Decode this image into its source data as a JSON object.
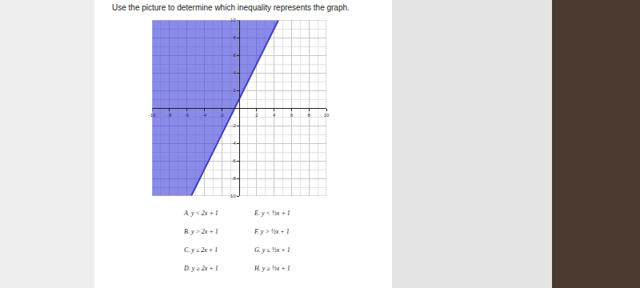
{
  "chart_data": {
    "type": "line",
    "title": "Use the picture to determine which inequality represents the graph.",
    "x": [
      -5.5,
      4.5
    ],
    "values": [
      -10,
      10
    ],
    "color": "#3c3cd8",
    "line_style": "solid",
    "xlim": [
      -10,
      10
    ],
    "ylim": [
      -10,
      10
    ],
    "xticks": [
      -10,
      -8,
      -6,
      -4,
      -2,
      2,
      4,
      6,
      8,
      10
    ],
    "yticks": [
      -10,
      -8,
      -6,
      -4,
      -2,
      2,
      4,
      6,
      8,
      10
    ],
    "grid": true,
    "choices": [
      "A. y < 2x + 1",
      "B. y > 2x + 1",
      "C. y ≤ 2x + 1",
      "D. y ≥ 2x + 1",
      "E. y < ½x + 1",
      "F. y > ½x + 1",
      "G. y ≤ ½x + 1",
      "H. y ≥ ½x + 1"
    ]
  }
}
